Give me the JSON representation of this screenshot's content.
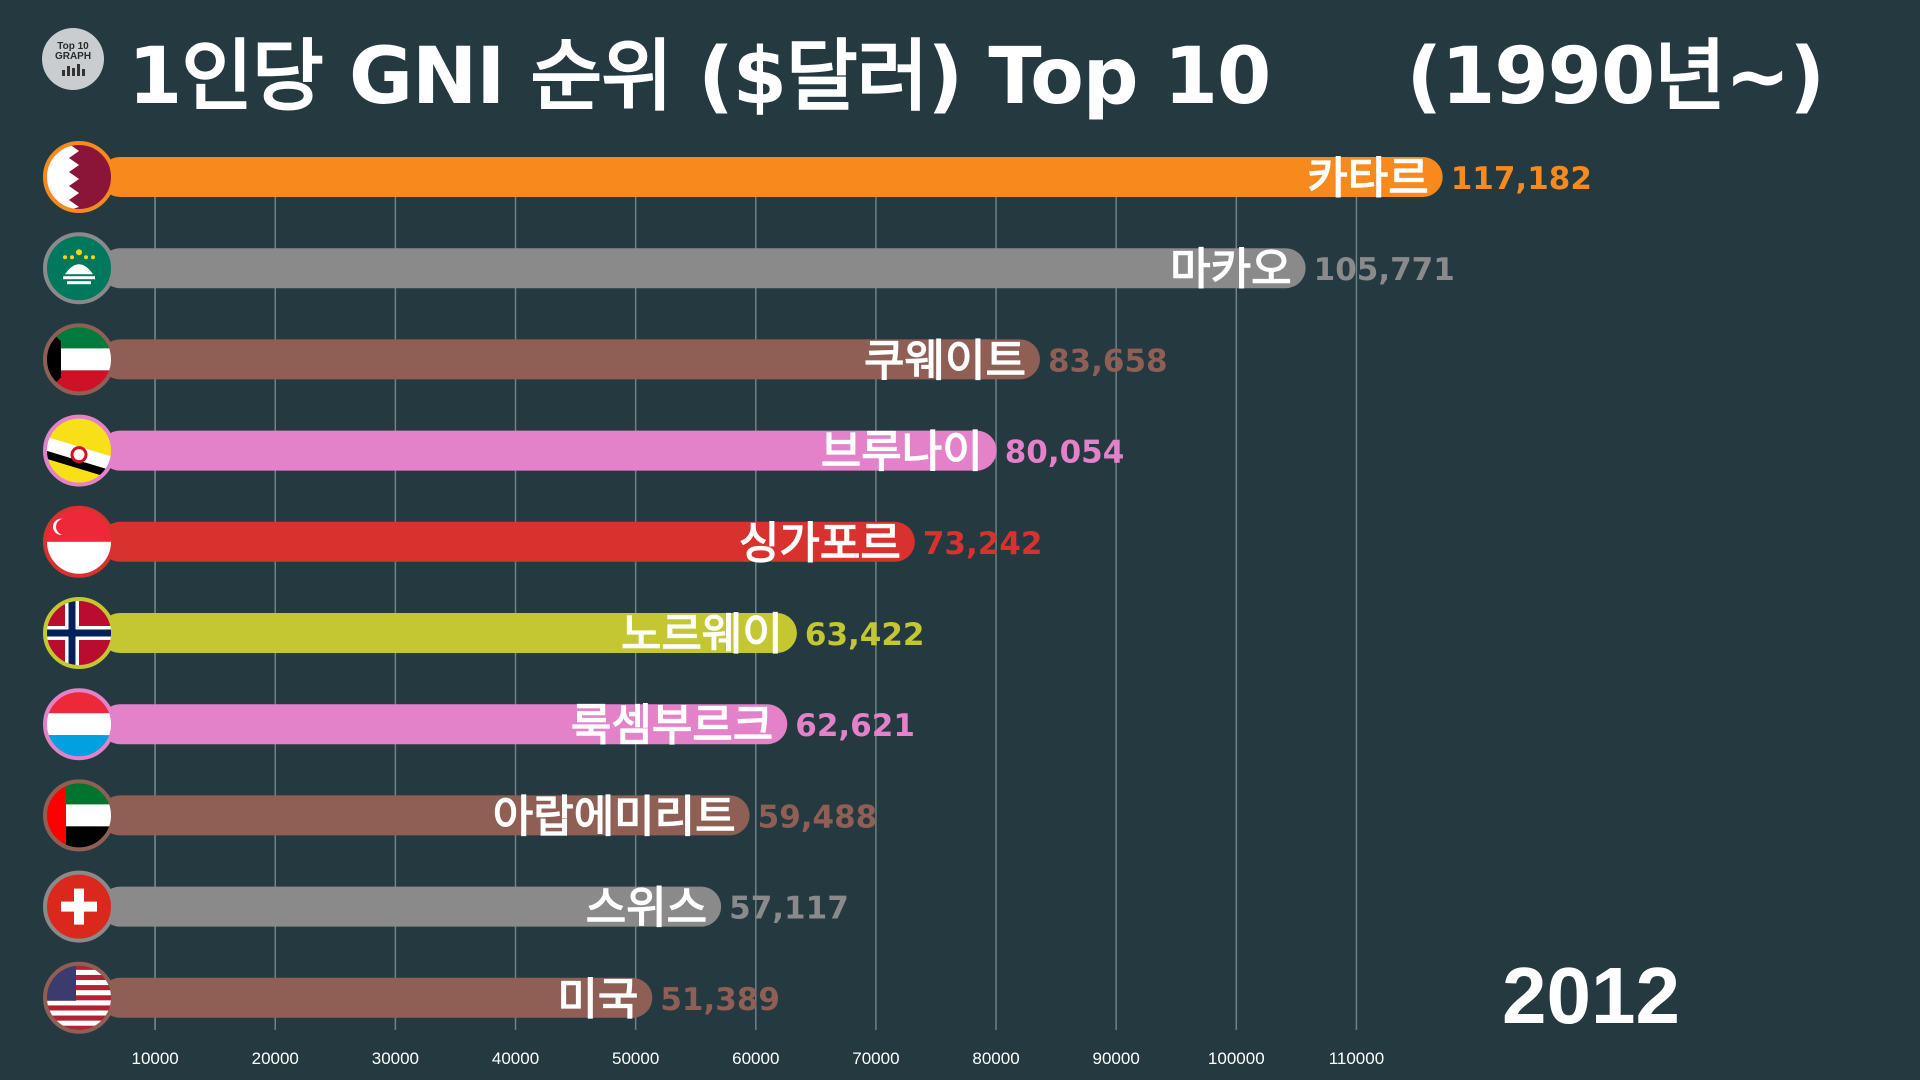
{
  "header": {
    "logo_line1": "Top 10",
    "logo_line2": "GRAPH",
    "title": "1인당 GNI 순위 ($달러) Top 10",
    "period": "(1990년~)"
  },
  "year": "2012",
  "chart_data": {
    "type": "bar",
    "orientation": "horizontal",
    "title": "1인당 GNI 순위 ($달러) Top 10",
    "xlim": [
      0,
      120000
    ],
    "x_ticks": [
      10000,
      20000,
      30000,
      40000,
      50000,
      60000,
      70000,
      80000,
      90000,
      100000,
      110000
    ],
    "grid": true,
    "categories": [
      "카타르",
      "마카오",
      "쿠웨이트",
      "브루나이",
      "싱가포르",
      "노르웨이",
      "룩셈부르크",
      "아랍에미리트",
      "스위스",
      "미국"
    ],
    "values": [
      117182,
      105771,
      83658,
      80054,
      73242,
      63422,
      62621,
      59488,
      57117,
      51389
    ],
    "value_labels": [
      "117,182",
      "105,771",
      "83,658",
      "80,054",
      "73,242",
      "63,422",
      "62,621",
      "59,488",
      "57,117",
      "51,389"
    ],
    "colors": [
      "#f7891d",
      "#8a8a8a",
      "#8f5f55",
      "#e381c9",
      "#d9312e",
      "#c4c632",
      "#e381c9",
      "#8f5f55",
      "#8a8a8a",
      "#8f5f55"
    ],
    "flag_icons": [
      "qatar-flag-icon",
      "macau-flag-icon",
      "kuwait-flag-icon",
      "brunei-flag-icon",
      "singapore-flag-icon",
      "norway-flag-icon",
      "luxembourg-flag-icon",
      "uae-flag-icon",
      "switzerland-flag-icon",
      "usa-flag-icon"
    ]
  }
}
